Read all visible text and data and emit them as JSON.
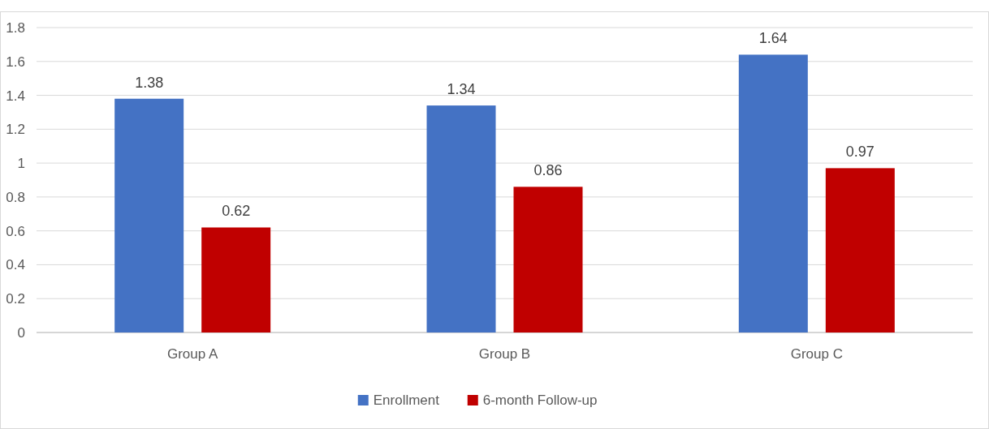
{
  "chart_data": {
    "type": "bar",
    "categories": [
      "Group A",
      "Group B",
      "Group C"
    ],
    "series": [
      {
        "name": "Enrollment",
        "color": "#4472c4",
        "values": [
          1.38,
          1.34,
          1.64
        ]
      },
      {
        "name": "6-month Follow-up",
        "color": "#c00000",
        "values": [
          0.62,
          0.86,
          0.97
        ]
      }
    ],
    "ylim": [
      0,
      1.8
    ],
    "yticks": [
      0,
      0.2,
      0.4,
      0.6,
      0.8,
      1,
      1.2,
      1.4,
      1.6,
      1.8
    ],
    "grid": "y",
    "data_labels": true,
    "legend": "bottom"
  }
}
